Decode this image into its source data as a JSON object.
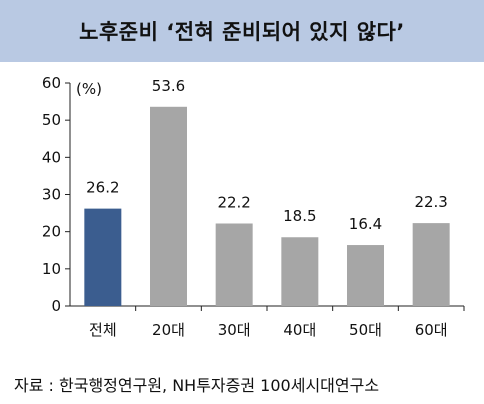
{
  "title": "노후준비 ‘전혀 준비되어 있지 않다’",
  "source": "자료 : 한국행정연구원, NH투자증권 100세시대연구소",
  "colors": {
    "title_band": "#b9c9e3",
    "highlight_bar": "#3b5d8f",
    "bar": "#a6a6a6"
  },
  "chart_data": {
    "type": "bar",
    "unit_label": "(%)",
    "categories": [
      "전체",
      "20대",
      "30대",
      "40대",
      "50대",
      "60대"
    ],
    "values": [
      26.2,
      53.6,
      22.2,
      18.5,
      16.4,
      22.3
    ],
    "value_labels": [
      "26.2",
      "53.6",
      "22.2",
      "18.5",
      "16.4",
      "22.3"
    ],
    "highlight_index": 0,
    "ylim": [
      0,
      60
    ],
    "yticks": [
      0,
      10,
      20,
      30,
      40,
      50,
      60
    ],
    "grid": false,
    "legend": "none"
  }
}
